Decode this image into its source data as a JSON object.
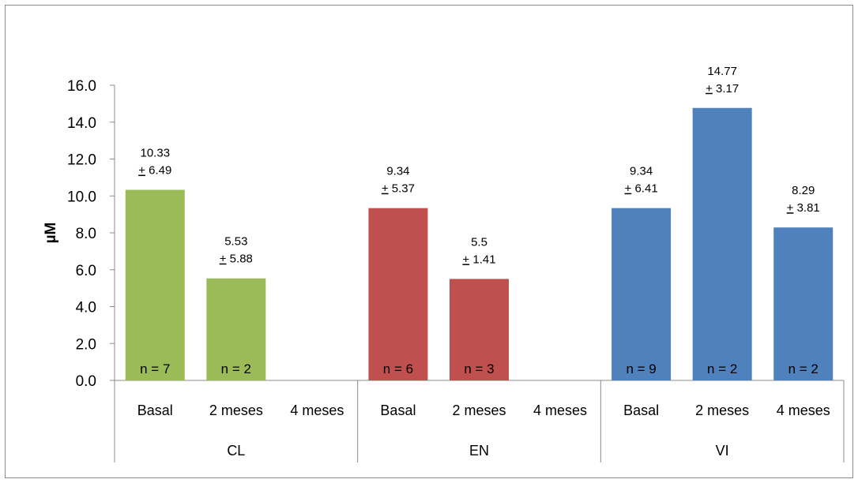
{
  "chart_data": {
    "type": "bar",
    "ylabel": "µM",
    "ylim": [
      0,
      16
    ],
    "yticks": [
      "0.0",
      "2.0",
      "4.0",
      "6.0",
      "8.0",
      "10.0",
      "12.0",
      "14.0",
      "16.0"
    ],
    "grid": false,
    "legend": "none",
    "groups": [
      {
        "name": "CL",
        "color": "#9BBB59",
        "categories": [
          "Basal",
          "2 meses",
          "4 meses"
        ],
        "values": [
          10.33,
          5.53,
          null
        ],
        "errors": [
          "6.49",
          "5.88",
          null
        ],
        "value_labels": [
          "10.33",
          "5.53",
          null
        ],
        "n_labels": [
          "n = 7",
          "n = 2",
          null
        ]
      },
      {
        "name": "EN",
        "color": "#C0504D",
        "categories": [
          "Basal",
          "2 meses",
          "4 meses"
        ],
        "values": [
          9.34,
          5.5,
          null
        ],
        "errors": [
          "5.37",
          "1.41",
          null
        ],
        "value_labels": [
          "9.34",
          "5.5",
          null
        ],
        "n_labels": [
          "n = 6",
          "n = 3",
          null
        ]
      },
      {
        "name": "VI",
        "color": "#4F81BD",
        "categories": [
          "Basal",
          "2 meses",
          "4 meses"
        ],
        "values": [
          9.34,
          14.77,
          8.29
        ],
        "errors": [
          "6.41",
          "3.17",
          "3.81"
        ],
        "value_labels": [
          "9.34",
          "14.77",
          "8.29"
        ],
        "n_labels": [
          "n = 9",
          "n = 2",
          "n = 2"
        ]
      }
    ],
    "error_prefix": "+"
  }
}
